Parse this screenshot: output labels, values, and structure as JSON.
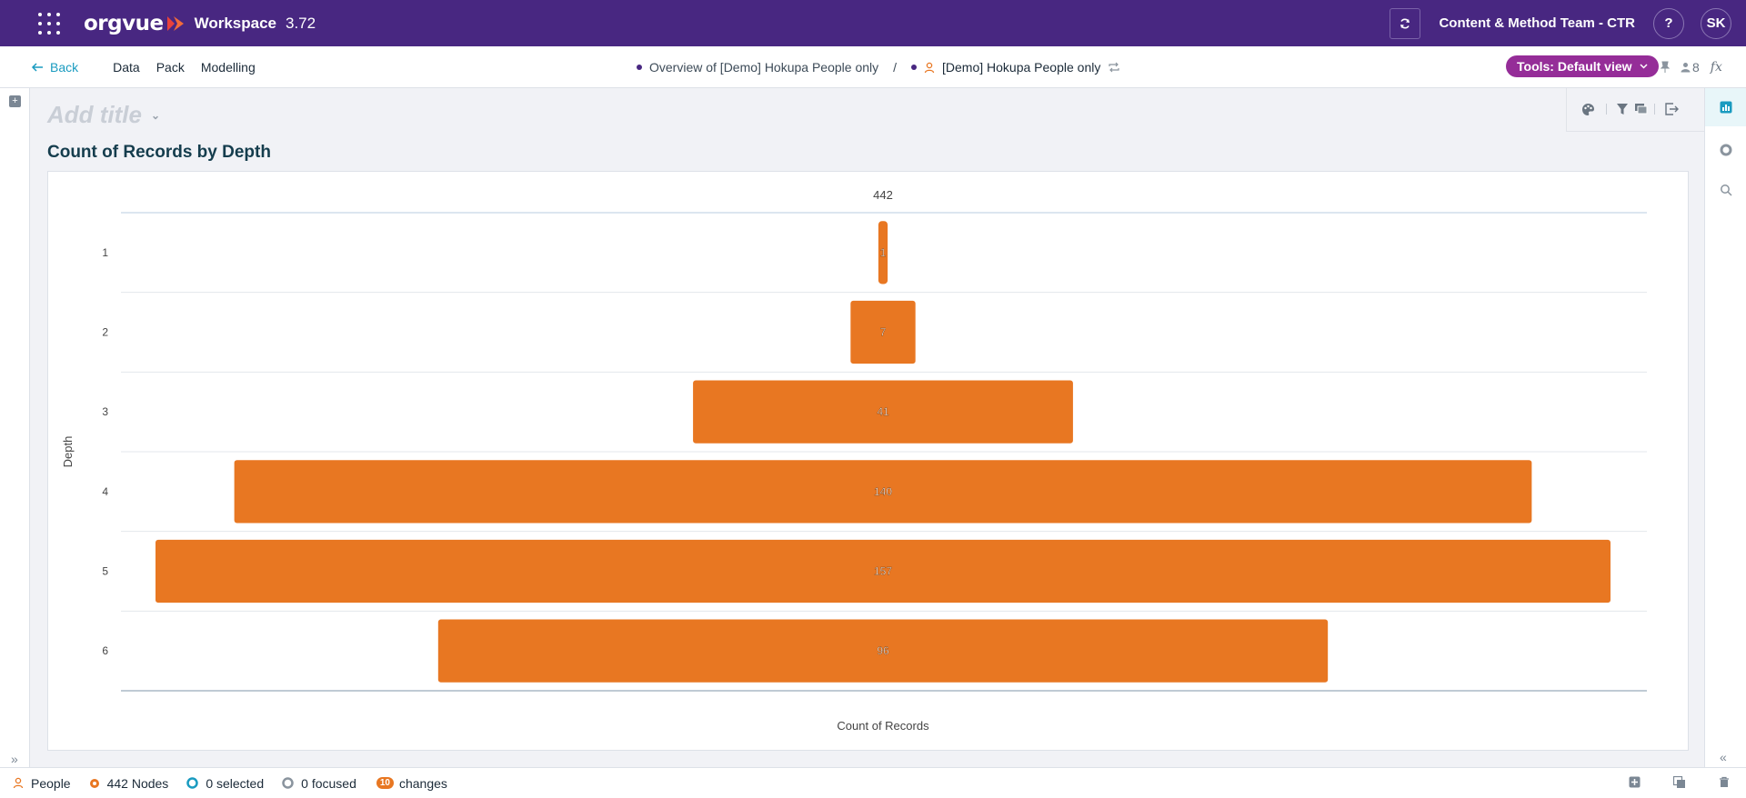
{
  "app": {
    "logo_text": "orgvue",
    "workspace_label": "Workspace",
    "version": "3.72",
    "team": "Content & Method Team - CTR",
    "help_label": "?",
    "avatar_initials": "SK",
    "colors": {
      "header": "#482781",
      "accent": "#1a9bc0",
      "bar": "#e87722",
      "tools_pill": "#952d98"
    }
  },
  "nav": {
    "back_label": "Back",
    "menu": [
      "Data",
      "Pack",
      "Modelling"
    ],
    "breadcrumb_overview": "Overview of [Demo] Hokupa People only",
    "breadcrumb_sep": "/",
    "breadcrumb_dataset": "[Demo] Hokupa People only",
    "tools_label": "Tools: Default view",
    "users_count": "8",
    "fx_label": "fx"
  },
  "main": {
    "title_placeholder": "Add title",
    "chart_title": "Count of Records by Depth"
  },
  "chart_data": {
    "type": "bar",
    "orientation": "horizontal-centered",
    "title": "Count of Records by Depth",
    "total_label": "442",
    "xlabel": "Count of Records",
    "ylabel": "Depth",
    "categories": [
      "1",
      "2",
      "3",
      "4",
      "5",
      "6"
    ],
    "values": [
      1,
      7,
      41,
      140,
      157,
      96
    ],
    "value_labels": [
      "1",
      "7",
      "41",
      "140",
      "157",
      "96"
    ],
    "color": "#e87722"
  },
  "status": {
    "dataset": "People",
    "nodes": "442 Nodes",
    "selected": "0 selected",
    "focused": "0 focused",
    "changes_count": "10",
    "changes_label": "changes"
  }
}
